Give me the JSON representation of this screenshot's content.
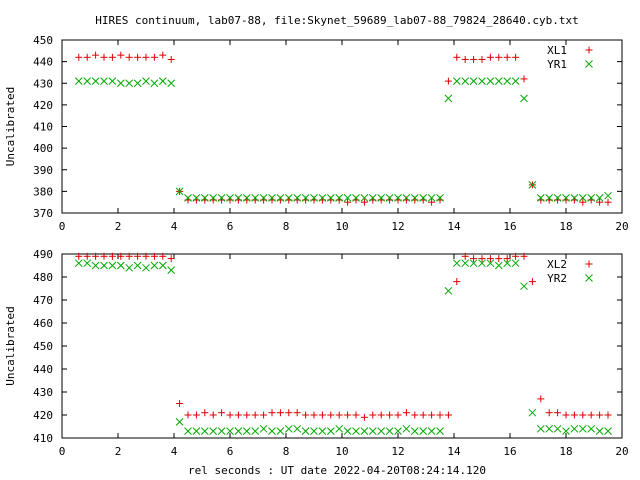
{
  "title": "HIRES continuum, lab07-88, file:Skynet_59689_lab07-88_79824_28640.cyb.txt",
  "xlabel": "rel seconds : UT date 2022-04-20T08:24:14.120",
  "colors": {
    "red": "#dd0000",
    "green": "#00aa00"
  },
  "chart_data": [
    {
      "type": "scatter",
      "ylabel": "Uncalibrated",
      "xlim": [
        0,
        20
      ],
      "ylim": [
        370,
        450
      ],
      "xticks": [
        "0",
        "2",
        "4",
        "6",
        "8",
        "10",
        "12",
        "14",
        "16",
        "18",
        "20"
      ],
      "yticks": [
        "370",
        "380",
        "390",
        "400",
        "410",
        "420",
        "430",
        "440",
        "450"
      ],
      "legend_position": "top-right",
      "series": [
        {
          "name": "XL1",
          "marker": "plus",
          "color": "#dd0000",
          "x": [
            0.6,
            0.9,
            1.2,
            1.5,
            1.8,
            2.1,
            2.4,
            2.7,
            3.0,
            3.3,
            3.6,
            3.9,
            4.2,
            4.5,
            4.8,
            5.1,
            5.4,
            5.7,
            6.0,
            6.3,
            6.6,
            6.9,
            7.2,
            7.5,
            7.8,
            8.1,
            8.4,
            8.7,
            9.0,
            9.3,
            9.6,
            9.9,
            10.2,
            10.5,
            10.8,
            11.1,
            11.4,
            11.7,
            12.0,
            12.3,
            12.6,
            12.9,
            13.2,
            13.5,
            13.8,
            14.1,
            14.4,
            14.7,
            15.0,
            15.3,
            15.6,
            15.9,
            16.2,
            16.5,
            16.8,
            17.1,
            17.4,
            17.7,
            18.0,
            18.3,
            18.6,
            18.9,
            19.2,
            19.5
          ],
          "y": [
            442,
            442,
            443,
            442,
            442,
            443,
            442,
            442,
            442,
            442,
            443,
            441,
            380,
            376,
            376,
            376,
            376,
            376,
            376,
            376,
            376,
            376,
            376,
            376,
            376,
            376,
            376,
            376,
            376,
            376,
            376,
            376,
            375,
            376,
            375,
            376,
            376,
            376,
            376,
            376,
            376,
            376,
            375,
            376,
            431,
            442,
            441,
            441,
            441,
            442,
            442,
            442,
            442,
            432,
            383,
            376,
            376,
            376,
            376,
            376,
            375,
            376,
            375,
            375
          ],
          "y_note": ""
        },
        {
          "name": "YR1",
          "marker": "cross",
          "color": "#00aa00",
          "x": [
            0.6,
            0.9,
            1.2,
            1.5,
            1.8,
            2.1,
            2.4,
            2.7,
            3.0,
            3.3,
            3.6,
            3.9,
            4.2,
            4.5,
            4.8,
            5.1,
            5.4,
            5.7,
            6.0,
            6.3,
            6.6,
            6.9,
            7.2,
            7.5,
            7.8,
            8.1,
            8.4,
            8.7,
            9.0,
            9.3,
            9.6,
            9.9,
            10.2,
            10.5,
            10.8,
            11.1,
            11.4,
            11.7,
            12.0,
            12.3,
            12.6,
            12.9,
            13.2,
            13.5,
            13.8,
            14.1,
            14.4,
            14.7,
            15.0,
            15.3,
            15.6,
            15.9,
            16.2,
            16.5,
            16.8,
            17.1,
            17.4,
            17.7,
            18.0,
            18.3,
            18.6,
            18.9,
            19.2,
            19.5
          ],
          "y": [
            431,
            431,
            431,
            431,
            431,
            430,
            430,
            430,
            431,
            430,
            431,
            430,
            380,
            377,
            377,
            377,
            377,
            377,
            377,
            377,
            377,
            377,
            377,
            377,
            377,
            377,
            377,
            377,
            377,
            377,
            377,
            377,
            377,
            377,
            377,
            377,
            377,
            377,
            377,
            377,
            377,
            377,
            377,
            377,
            423,
            431,
            431,
            431,
            431,
            431,
            431,
            431,
            431,
            423,
            383,
            377,
            377,
            377,
            377,
            377,
            377,
            377,
            377,
            378
          ]
        }
      ]
    },
    {
      "type": "scatter",
      "ylabel": "Uncalibrated",
      "xlim": [
        0,
        20
      ],
      "ylim": [
        410,
        490
      ],
      "xticks": [
        "0",
        "2",
        "4",
        "6",
        "8",
        "10",
        "12",
        "14",
        "16",
        "18",
        "20"
      ],
      "yticks": [
        "410",
        "420",
        "430",
        "440",
        "450",
        "460",
        "470",
        "480",
        "490"
      ],
      "legend_position": "top-right",
      "series": [
        {
          "name": "XL2",
          "marker": "plus",
          "color": "#dd0000",
          "x": [
            0.6,
            0.9,
            1.2,
            1.5,
            1.8,
            2.1,
            2.4,
            2.7,
            3.0,
            3.3,
            3.6,
            3.9,
            4.2,
            4.5,
            4.8,
            5.1,
            5.4,
            5.7,
            6.0,
            6.3,
            6.6,
            6.9,
            7.2,
            7.5,
            7.8,
            8.1,
            8.4,
            8.7,
            9.0,
            9.3,
            9.6,
            9.9,
            10.2,
            10.5,
            10.8,
            11.1,
            11.4,
            11.7,
            12.0,
            12.3,
            12.6,
            12.9,
            13.2,
            13.5,
            13.8,
            14.1,
            14.4,
            14.7,
            15.0,
            15.3,
            15.6,
            15.9,
            16.2,
            16.5,
            16.8,
            17.1,
            17.4,
            17.7,
            18.0,
            18.3,
            18.6,
            18.9,
            19.2,
            19.5
          ],
          "y": [
            489,
            489,
            489,
            489,
            489,
            489,
            489,
            489,
            489,
            489,
            489,
            488,
            425,
            420,
            420,
            421,
            420,
            421,
            420,
            420,
            420,
            420,
            420,
            421,
            421,
            421,
            421,
            420,
            420,
            420,
            420,
            420,
            420,
            420,
            419,
            420,
            420,
            420,
            420,
            421,
            420,
            420,
            420,
            420,
            420,
            478,
            489,
            488,
            488,
            488,
            488,
            488,
            489,
            489,
            478,
            427,
            421,
            421,
            420,
            420,
            420,
            420,
            420,
            420
          ]
        },
        {
          "name": "YR2",
          "marker": "cross",
          "color": "#00aa00",
          "x": [
            0.6,
            0.9,
            1.2,
            1.5,
            1.8,
            2.1,
            2.4,
            2.7,
            3.0,
            3.3,
            3.6,
            3.9,
            4.2,
            4.5,
            4.8,
            5.1,
            5.4,
            5.7,
            6.0,
            6.3,
            6.6,
            6.9,
            7.2,
            7.5,
            7.8,
            8.1,
            8.4,
            8.7,
            9.0,
            9.3,
            9.6,
            9.9,
            10.2,
            10.5,
            10.8,
            11.1,
            11.4,
            11.7,
            12.0,
            12.3,
            12.6,
            12.9,
            13.2,
            13.5,
            13.8,
            14.1,
            14.4,
            14.7,
            15.0,
            15.3,
            15.6,
            15.9,
            16.2,
            16.5,
            16.8,
            17.1,
            17.4,
            17.7,
            18.0,
            18.3,
            18.6,
            18.9,
            19.2,
            19.5
          ],
          "y": [
            486,
            486,
            485,
            485,
            485,
            485,
            484,
            485,
            484,
            485,
            485,
            483,
            417,
            413,
            413,
            413,
            413,
            413,
            413,
            413,
            413,
            413,
            414,
            413,
            413,
            414,
            414,
            413,
            413,
            413,
            413,
            414,
            413,
            413,
            413,
            413,
            413,
            413,
            413,
            414,
            413,
            413,
            413,
            413,
            474,
            486,
            486,
            486,
            486,
            486,
            485,
            486,
            486,
            476,
            421,
            414,
            414,
            414,
            413,
            414,
            414,
            414,
            413,
            413
          ]
        }
      ]
    }
  ]
}
